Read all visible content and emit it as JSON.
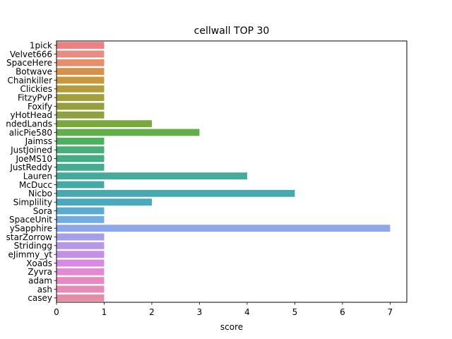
{
  "chart_data": {
    "type": "bar",
    "orientation": "horizontal",
    "title": "cellwall TOP 30",
    "xlabel": "score",
    "ylabel": "",
    "xlim": [
      0,
      7.35
    ],
    "x_ticks": [
      0,
      1,
      2,
      3,
      4,
      5,
      6,
      7
    ],
    "grid": false,
    "categories": [
      "1pick",
      "Velvet666",
      "SpaceHere",
      "Botwave",
      "Chainkiller",
      "Clickies",
      "FitzyPvP",
      "Foxify",
      "yHotHead",
      "ndedLands",
      "alicPie580",
      "Jaimss",
      "JustJoined",
      "JoeMS10",
      "JustReddy",
      "Lauren",
      "McDucc",
      "Nicbo",
      "Simplility",
      "Sora",
      "SpaceUnit",
      "ySapphire",
      "starZorrow",
      "Stridingg",
      "eJimmy_yt",
      "Xoads",
      "Zyvra",
      "adam",
      "ash",
      "casey"
    ],
    "values": [
      1,
      1,
      1,
      1,
      1,
      1,
      1,
      1,
      1,
      2,
      3,
      1,
      1,
      1,
      1,
      4,
      1,
      5,
      2,
      1,
      1,
      7,
      1,
      1,
      1,
      1,
      1,
      1,
      1,
      1
    ],
    "colors": [
      "#e8817f",
      "#e98d84",
      "#e58f6e",
      "#d4914c",
      "#c8983f",
      "#b49c3c",
      "#a49f3d",
      "#959f3d",
      "#8ca33f",
      "#7aa83f",
      "#63ad4a",
      "#4db05f",
      "#48af76",
      "#45ad84",
      "#44ac8f",
      "#45aa9a",
      "#45a9a4",
      "#47a8b1",
      "#49a9bf",
      "#5baad4",
      "#71ade0",
      "#8fa7e8",
      "#a79de8",
      "#b797e8",
      "#c58fe8",
      "#d889e0",
      "#e489d4",
      "#e68ac3",
      "#e68bb4",
      "#e68ba4"
    ]
  }
}
